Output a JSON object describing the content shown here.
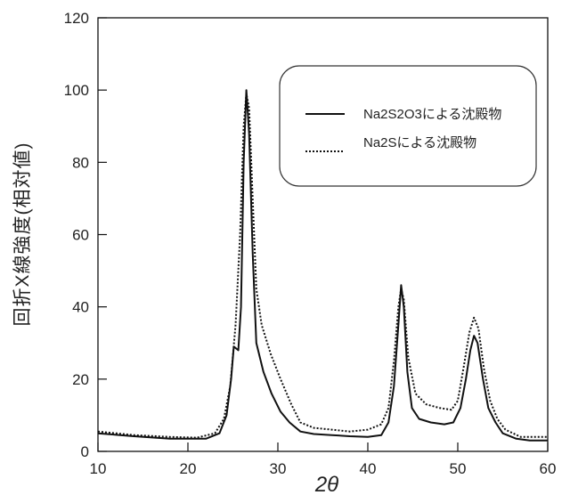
{
  "chart_data": {
    "type": "line",
    "ylabel": "回折X線強度(相対値)",
    "xlabel": "2θ",
    "xlim": [
      10,
      60
    ],
    "ylim": [
      0,
      120
    ],
    "x_ticks": [
      "10",
      "20",
      "30",
      "40",
      "50",
      "60"
    ],
    "y_ticks": [
      "0",
      "20",
      "40",
      "60",
      "80",
      "100",
      "120"
    ],
    "grid": false,
    "legend_position": "top-right",
    "legend": [
      {
        "label": "Na2S2O3による沈殿物",
        "line_style": "solid"
      },
      {
        "label": "Na2Sによる沈殿物",
        "line_style": "dotted"
      }
    ],
    "series": [
      {
        "name": "Na2S2O3による沈殿物",
        "line_style": "solid",
        "color": "#111111",
        "points": [
          [
            10,
            5
          ],
          [
            14,
            4.2
          ],
          [
            18,
            3.5
          ],
          [
            22,
            3.5
          ],
          [
            23.5,
            5
          ],
          [
            24.3,
            10
          ],
          [
            24.8,
            20
          ],
          [
            25.1,
            29
          ],
          [
            25.6,
            28
          ],
          [
            25.9,
            40
          ],
          [
            26.2,
            80
          ],
          [
            26.5,
            100
          ],
          [
            26.8,
            88
          ],
          [
            27.2,
            55
          ],
          [
            27.6,
            30
          ],
          [
            28.4,
            22
          ],
          [
            29.3,
            16
          ],
          [
            30.3,
            11
          ],
          [
            31.3,
            8
          ],
          [
            32.5,
            5.5
          ],
          [
            34,
            4.8
          ],
          [
            36,
            4.5
          ],
          [
            38,
            4.2
          ],
          [
            40,
            4
          ],
          [
            41.5,
            4.5
          ],
          [
            42.3,
            8
          ],
          [
            42.9,
            18
          ],
          [
            43.4,
            35
          ],
          [
            43.7,
            46
          ],
          [
            44,
            40
          ],
          [
            44.4,
            22
          ],
          [
            44.9,
            12
          ],
          [
            45.7,
            9
          ],
          [
            47,
            8
          ],
          [
            48.5,
            7.5
          ],
          [
            49.5,
            8
          ],
          [
            50.3,
            12
          ],
          [
            50.9,
            20
          ],
          [
            51.4,
            28
          ],
          [
            51.8,
            32
          ],
          [
            52.2,
            30
          ],
          [
            52.8,
            20
          ],
          [
            53.4,
            12
          ],
          [
            54.2,
            8
          ],
          [
            55,
            5
          ],
          [
            56.5,
            3.5
          ],
          [
            58,
            3
          ],
          [
            60,
            3
          ]
        ]
      },
      {
        "name": "Na2Sによる沈殿物",
        "line_style": "dotted",
        "color": "#111111",
        "points": [
          [
            10,
            5.5
          ],
          [
            14,
            4.5
          ],
          [
            18,
            4
          ],
          [
            21,
            3.8
          ],
          [
            23,
            5
          ],
          [
            24,
            9
          ],
          [
            24.7,
            18
          ],
          [
            25.3,
            35
          ],
          [
            25.8,
            60
          ],
          [
            26.2,
            90
          ],
          [
            26.5,
            99
          ],
          [
            26.8,
            95
          ],
          [
            27.2,
            70
          ],
          [
            27.6,
            45
          ],
          [
            28.2,
            35
          ],
          [
            29.2,
            27
          ],
          [
            30.3,
            20
          ],
          [
            31.5,
            13
          ],
          [
            32.5,
            8
          ],
          [
            34,
            6.5
          ],
          [
            36,
            6
          ],
          [
            38,
            5.5
          ],
          [
            40,
            6
          ],
          [
            41.5,
            7.5
          ],
          [
            42.3,
            12
          ],
          [
            42.9,
            25
          ],
          [
            43.4,
            40
          ],
          [
            43.7,
            45
          ],
          [
            44,
            42
          ],
          [
            44.5,
            26
          ],
          [
            45.3,
            16
          ],
          [
            46.5,
            13
          ],
          [
            48,
            12
          ],
          [
            49.3,
            11.5
          ],
          [
            50,
            14
          ],
          [
            50.7,
            24
          ],
          [
            51.3,
            33
          ],
          [
            51.8,
            37
          ],
          [
            52.3,
            34
          ],
          [
            52.9,
            23
          ],
          [
            53.6,
            14
          ],
          [
            54.4,
            9
          ],
          [
            55.3,
            6
          ],
          [
            57,
            4
          ],
          [
            60,
            4
          ]
        ]
      }
    ]
  }
}
